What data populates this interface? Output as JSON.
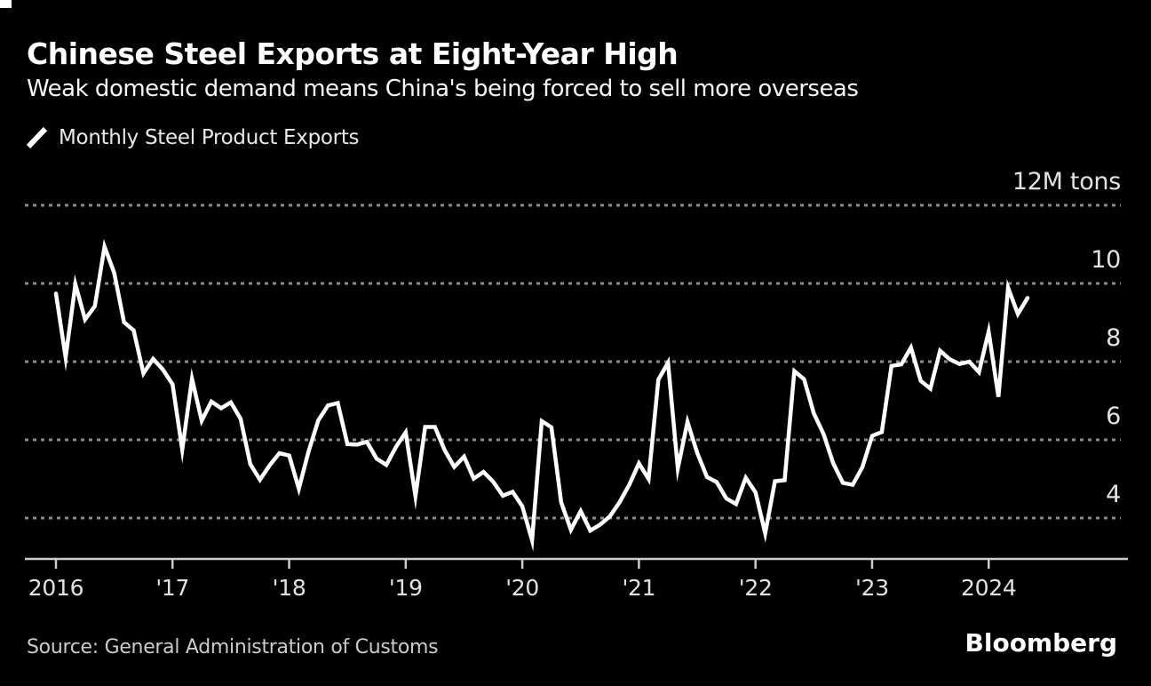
{
  "chart_data": {
    "type": "line",
    "title": "Chinese Steel Exports at Eight-Year High",
    "subtitle": "Weak domestic demand means China's being forced to sell more overseas",
    "unit_label": "12M tons",
    "grid": "horizontal-dotted",
    "legend_position": "top-left",
    "y_ticks": [
      12,
      10,
      8,
      6,
      4
    ],
    "y_tick_labels": [
      "12M tons",
      "10",
      "8",
      "6",
      "4"
    ],
    "ylim": [
      2.8,
      12.6
    ],
    "x_ticks": [
      {
        "label": "2016",
        "month": 0
      },
      {
        "label": "'17",
        "month": 12
      },
      {
        "label": "'18",
        "month": 24
      },
      {
        "label": "'19",
        "month": 36
      },
      {
        "label": "'20",
        "month": 48
      },
      {
        "label": "'21",
        "month": 60
      },
      {
        "label": "'22",
        "month": 72
      },
      {
        "label": "'23",
        "month": 84
      },
      {
        "label": "2024",
        "month": 96
      }
    ],
    "series": [
      {
        "name": "Monthly Steel Product Exports",
        "unit": "million tons",
        "start": "2016-01",
        "end": "2024-05",
        "frequency": "monthly",
        "values": [
          9.74,
          8.11,
          9.98,
          9.08,
          9.42,
          10.94,
          10.27,
          9.01,
          8.8,
          7.7,
          8.07,
          7.8,
          7.42,
          5.75,
          7.56,
          6.49,
          6.98,
          6.81,
          6.96,
          6.54,
          5.38,
          4.98,
          5.35,
          5.66,
          5.6,
          4.75,
          5.7,
          6.5,
          6.88,
          6.94,
          5.89,
          5.88,
          5.95,
          5.52,
          5.36,
          5.82,
          6.19,
          4.56,
          6.33,
          6.33,
          5.74,
          5.31,
          5.57,
          5.01,
          5.18,
          4.93,
          4.57,
          4.67,
          4.3,
          3.43,
          6.48,
          6.32,
          4.4,
          3.7,
          4.18,
          3.68,
          3.83,
          4.04,
          4.4,
          4.85,
          5.4,
          5.0,
          7.54,
          7.97,
          5.27,
          6.46,
          5.67,
          5.05,
          4.92,
          4.5,
          4.36,
          5.03,
          4.66,
          3.61,
          4.94,
          4.97,
          7.76,
          7.55,
          6.68,
          6.15,
          5.4,
          4.9,
          4.85,
          5.3,
          6.1,
          6.2,
          7.89,
          7.93,
          8.36,
          7.51,
          7.31,
          8.28,
          8.06,
          7.94,
          8.0,
          7.73,
          8.77,
          7.1,
          9.89,
          9.22,
          9.63
        ]
      }
    ],
    "colors": {
      "background": "#000000",
      "line": "#ffffff",
      "grid": "#8c8c8c",
      "axis": "#cdcdcd",
      "tick_text": "#e2e2e2"
    }
  },
  "footer": {
    "source_label": "Source: General Administration of Customs",
    "brand_label": "Bloomberg"
  }
}
